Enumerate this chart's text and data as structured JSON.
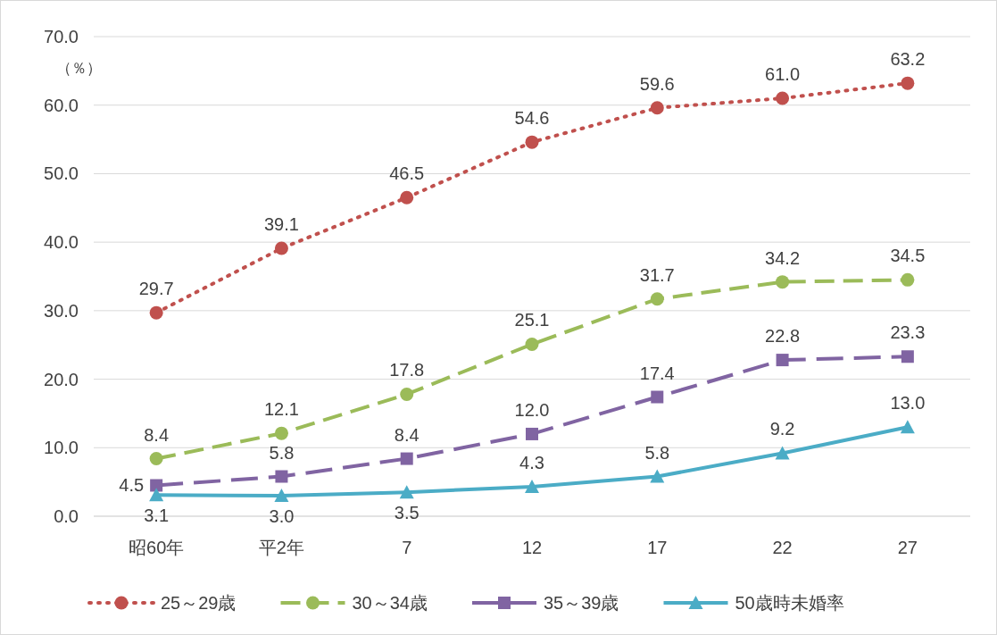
{
  "chart_data": {
    "type": "line",
    "ylabel": "（％）",
    "categories": [
      "昭60年",
      "平2年",
      "7",
      "12",
      "17",
      "22",
      "27"
    ],
    "ylim": [
      0,
      70
    ],
    "yticks": [
      {
        "value": 0,
        "label": "0.0"
      },
      {
        "value": 10,
        "label": "10.0"
      },
      {
        "value": 20,
        "label": "20.0"
      },
      {
        "value": 30,
        "label": "30.0"
      },
      {
        "value": 40,
        "label": "40.0"
      },
      {
        "value": 50,
        "label": "50.0"
      },
      {
        "value": 60,
        "label": "60.0"
      },
      {
        "value": 70,
        "label": "70.0"
      }
    ],
    "grid": "y",
    "legend": "bottom",
    "series": [
      {
        "name": "25～29歳",
        "color": "#c0504d",
        "marker": "circle",
        "line_style": "dotted",
        "values": [
          29.7,
          39.1,
          46.5,
          54.6,
          59.6,
          61.0,
          63.2
        ],
        "value_labels": [
          "29.7",
          "39.1",
          "46.5",
          "54.6",
          "59.6",
          "61.0",
          "63.2"
        ]
      },
      {
        "name": "30～34歳",
        "color": "#9bbb59",
        "marker": "circle",
        "line_style": "dashed",
        "values": [
          8.4,
          12.1,
          17.8,
          25.1,
          31.7,
          34.2,
          34.5
        ],
        "value_labels": [
          "8.4",
          "12.1",
          "17.8",
          "25.1",
          "31.7",
          "34.2",
          "34.5"
        ]
      },
      {
        "name": "35～39歳",
        "color": "#8064a2",
        "marker": "square",
        "line_style": "dashed",
        "values": [
          4.5,
          5.8,
          8.4,
          12.0,
          17.4,
          22.8,
          23.3
        ],
        "value_labels": [
          "4.5",
          "5.8",
          "8.4",
          "12.0",
          "17.4",
          "22.8",
          "23.3"
        ]
      },
      {
        "name": "50歳時未婚率",
        "color": "#4bacc6",
        "marker": "triangle",
        "line_style": "solid",
        "values": [
          3.1,
          3.0,
          3.5,
          4.3,
          5.8,
          9.2,
          13.0
        ],
        "value_labels": [
          "3.1",
          "3.0",
          "3.5",
          "4.3",
          "5.8",
          "9.2",
          "13.0"
        ]
      }
    ]
  }
}
